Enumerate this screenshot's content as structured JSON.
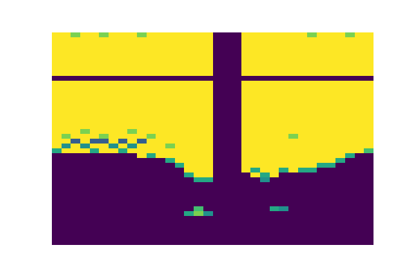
{
  "chart_data": {
    "type": "heatmap",
    "color": "viridis",
    "tick_labels": false,
    "values": [
      [
        1,
        1,
        0.8,
        1,
        1,
        0.8,
        1,
        1,
        1,
        0.8,
        1,
        1,
        1,
        1,
        1,
        1,
        1,
        0,
        0,
        0,
        1,
        1,
        1,
        1,
        1,
        1,
        1,
        0.8,
        1,
        1,
        1,
        0.8,
        1,
        1
      ],
      [
        1,
        1,
        1,
        1,
        1,
        1,
        1,
        1,
        1,
        1,
        1,
        1,
        1,
        1,
        1,
        1,
        1,
        0,
        0,
        0,
        1,
        1,
        1,
        1,
        1,
        1,
        1,
        1,
        1,
        1,
        1,
        1,
        1,
        1
      ],
      [
        1,
        1,
        1,
        1,
        1,
        1,
        1,
        1,
        1,
        1,
        1,
        1,
        1,
        1,
        1,
        1,
        1,
        0,
        0,
        0,
        1,
        1,
        1,
        1,
        1,
        1,
        1,
        1,
        1,
        1,
        1,
        1,
        1,
        1
      ],
      [
        1,
        1,
        1,
        1,
        1,
        1,
        1,
        1,
        1,
        1,
        1,
        1,
        1,
        1,
        1,
        1,
        1,
        0,
        0,
        0,
        1,
        1,
        1,
        1,
        1,
        1,
        1,
        1,
        1,
        1,
        1,
        1,
        1,
        1
      ],
      [
        1,
        1,
        1,
        1,
        1,
        1,
        1,
        1,
        1,
        1,
        1,
        1,
        1,
        1,
        1,
        1,
        1,
        0,
        0,
        0,
        1,
        1,
        1,
        1,
        1,
        1,
        1,
        1,
        1,
        1,
        1,
        1,
        1,
        1
      ],
      [
        1,
        1,
        1,
        1,
        1,
        1,
        1,
        1,
        1,
        1,
        1,
        1,
        1,
        1,
        1,
        1,
        1,
        0,
        0,
        0,
        1,
        1,
        1,
        1,
        1,
        1,
        1,
        1,
        1,
        1,
        1,
        1,
        1,
        1
      ],
      [
        1,
        1,
        1,
        1,
        1,
        1,
        1,
        1,
        1,
        1,
        1,
        1,
        1,
        1,
        1,
        1,
        1,
        0,
        0,
        0,
        1,
        1,
        1,
        1,
        1,
        1,
        1,
        1,
        1,
        1,
        1,
        1,
        1,
        1
      ],
      [
        1,
        1,
        1,
        1,
        1,
        1,
        1,
        1,
        1,
        1,
        1,
        1,
        1,
        1,
        1,
        1,
        1,
        0,
        0,
        0,
        1,
        1,
        1,
        1,
        1,
        1,
        1,
        1,
        1,
        1,
        1,
        1,
        1,
        1
      ],
      [
        1,
        1,
        1,
        1,
        1,
        1,
        1,
        1,
        1,
        1,
        1,
        1,
        1,
        1,
        1,
        1,
        1,
        0,
        0,
        0,
        1,
        1,
        1,
        1,
        1,
        1,
        1,
        1,
        1,
        1,
        1,
        1,
        1,
        1
      ],
      [
        0,
        0,
        0,
        0,
        0,
        0,
        0,
        0,
        0,
        0,
        0,
        0,
        0,
        0,
        0,
        0,
        0,
        0,
        0,
        0,
        0,
        0,
        0,
        0,
        0,
        0,
        0,
        0,
        0,
        0,
        0,
        0,
        0,
        0
      ],
      [
        1,
        1,
        1,
        1,
        1,
        1,
        1,
        1,
        1,
        1,
        1,
        1,
        1,
        1,
        1,
        1,
        1,
        0,
        0,
        0,
        1,
        1,
        1,
        1,
        1,
        1,
        1,
        1,
        1,
        1,
        1,
        1,
        1,
        1
      ],
      [
        1,
        1,
        1,
        1,
        1,
        1,
        1,
        1,
        1,
        1,
        1,
        1,
        1,
        1,
        1,
        1,
        1,
        0,
        0,
        0,
        1,
        1,
        1,
        1,
        1,
        1,
        1,
        1,
        1,
        1,
        1,
        1,
        1,
        1
      ],
      [
        1,
        1,
        1,
        1,
        1,
        1,
        1,
        1,
        1,
        1,
        1,
        1,
        1,
        1,
        1,
        1,
        1,
        0,
        0,
        0,
        1,
        1,
        1,
        1,
        1,
        1,
        1,
        1,
        1,
        1,
        1,
        1,
        1,
        1
      ],
      [
        1,
        1,
        1,
        1,
        1,
        1,
        1,
        1,
        1,
        1,
        1,
        1,
        1,
        1,
        1,
        1,
        1,
        0,
        0,
        0,
        1,
        1,
        1,
        1,
        1,
        1,
        1,
        1,
        1,
        1,
        1,
        1,
        1,
        1
      ],
      [
        1,
        1,
        1,
        1,
        1,
        1,
        1,
        1,
        1,
        1,
        1,
        1,
        1,
        1,
        1,
        1,
        1,
        0,
        0,
        0,
        1,
        1,
        1,
        1,
        1,
        1,
        1,
        1,
        1,
        1,
        1,
        1,
        1,
        1
      ],
      [
        1,
        1,
        1,
        1,
        1,
        1,
        1,
        1,
        1,
        1,
        1,
        1,
        1,
        1,
        1,
        1,
        1,
        0,
        0,
        0,
        1,
        1,
        1,
        1,
        1,
        1,
        1,
        1,
        1,
        1,
        1,
        1,
        1,
        1
      ],
      [
        1,
        1,
        1,
        1,
        1,
        1,
        1,
        1,
        1,
        1,
        1,
        1,
        1,
        1,
        1,
        1,
        1,
        0,
        0,
        0,
        1,
        1,
        1,
        1,
        1,
        1,
        1,
        1,
        1,
        1,
        1,
        1,
        1,
        1
      ],
      [
        1,
        1,
        1,
        1,
        1,
        1,
        1,
        1,
        1,
        1,
        1,
        1,
        1,
        1,
        1,
        1,
        1,
        0,
        0,
        0,
        1,
        1,
        1,
        1,
        1,
        1,
        1,
        1,
        1,
        1,
        1,
        1,
        1,
        1
      ],
      [
        1,
        1,
        1,
        1,
        1,
        1,
        1,
        1,
        1,
        1,
        1,
        1,
        1,
        1,
        1,
        1,
        1,
        0,
        0,
        0,
        1,
        1,
        1,
        1,
        1,
        1,
        1,
        1,
        1,
        1,
        1,
        1,
        1,
        1
      ],
      [
        1,
        1,
        1,
        1,
        1,
        1,
        1,
        1,
        1,
        1,
        1,
        1,
        1,
        1,
        1,
        1,
        1,
        0,
        0,
        0,
        1,
        1,
        1,
        1,
        1,
        1,
        1,
        1,
        1,
        1,
        1,
        1,
        1,
        1
      ],
      [
        1,
        1,
        1,
        0.8,
        1,
        1,
        1,
        1,
        0.8,
        1,
        1,
        1,
        1,
        1,
        1,
        1,
        1,
        0,
        0,
        0,
        1,
        1,
        1,
        1,
        1,
        1,
        1,
        1,
        1,
        1,
        1,
        1,
        1,
        1
      ],
      [
        1,
        0.8,
        1,
        1,
        1,
        0.8,
        1,
        1,
        1,
        1,
        0.8,
        1,
        1,
        1,
        1,
        1,
        1,
        0,
        0,
        0,
        1,
        1,
        1,
        1,
        1,
        0.8,
        1,
        1,
        1,
        1,
        1,
        1,
        1,
        1
      ],
      [
        1,
        1,
        0.3,
        1,
        0.3,
        0.3,
        1,
        0.3,
        1,
        0.3,
        1,
        1,
        1,
        1,
        1,
        1,
        1,
        0,
        0,
        0,
        1,
        1,
        1,
        1,
        1,
        1,
        1,
        1,
        1,
        1,
        1,
        1,
        1,
        1
      ],
      [
        1,
        0.5,
        1,
        0.5,
        1,
        1,
        0.5,
        1,
        0.5,
        1,
        1,
        1,
        0.8,
        1,
        1,
        1,
        1,
        0,
        0,
        0,
        1,
        1,
        1,
        1,
        1,
        1,
        1,
        1,
        1,
        1,
        1,
        1,
        1,
        1
      ],
      [
        0.6,
        1,
        1,
        1,
        0.6,
        1,
        1,
        0.6,
        1,
        1,
        1,
        1,
        1,
        1,
        1,
        1,
        1,
        0,
        0,
        0,
        1,
        1,
        1,
        1,
        1,
        1,
        1,
        1,
        1,
        1,
        1,
        1,
        1,
        0.7
      ],
      [
        0,
        0,
        0,
        0,
        0,
        0,
        0,
        0,
        0,
        1,
        0.6,
        1,
        1,
        1,
        1,
        1,
        1,
        0,
        0,
        0,
        1,
        1,
        1,
        1,
        1,
        1,
        1,
        1,
        1,
        1,
        1,
        0.6,
        0,
        0
      ],
      [
        0,
        0,
        0,
        0,
        0,
        0,
        0,
        0,
        0,
        0,
        0,
        0,
        0.6,
        1,
        1,
        1,
        1,
        0,
        0,
        0,
        1,
        1,
        1,
        1,
        1,
        1,
        1,
        1,
        1,
        1,
        0.6,
        0,
        0,
        0
      ],
      [
        0,
        0,
        0,
        0,
        0,
        0,
        0,
        0,
        0,
        0,
        0,
        0,
        0,
        0.6,
        1,
        1,
        1,
        0,
        0,
        0,
        1,
        1,
        1,
        1,
        1,
        1,
        1,
        1,
        0.6,
        0.6,
        0,
        0,
        0,
        0
      ],
      [
        0,
        0,
        0,
        0,
        0,
        0,
        0,
        0,
        0,
        0,
        0,
        0,
        0,
        0,
        1,
        1,
        1,
        0,
        0,
        0,
        1,
        0.6,
        1,
        1,
        0.6,
        1,
        0.6,
        0.6,
        0,
        0,
        0,
        0,
        0,
        0
      ],
      [
        0,
        0,
        0,
        0,
        0,
        0,
        0,
        0,
        0,
        0,
        0,
        0,
        0,
        0,
        0.6,
        1,
        1,
        0,
        0,
        0,
        0,
        1,
        0.6,
        1,
        0,
        0,
        0,
        0,
        0,
        0,
        0,
        0,
        0,
        0
      ],
      [
        0,
        0,
        0,
        0,
        0,
        0,
        0,
        0,
        0,
        0,
        0,
        0,
        0,
        0,
        0,
        0.6,
        0.6,
        0,
        0,
        0,
        0,
        0,
        0.5,
        0,
        0,
        0,
        0,
        0,
        0,
        0,
        0,
        0,
        0,
        0
      ],
      [
        0,
        0,
        0,
        0,
        0,
        0,
        0,
        0,
        0,
        0,
        0,
        0,
        0,
        0,
        0,
        0,
        0,
        0,
        0,
        0,
        0,
        0,
        0,
        0,
        0,
        0,
        0,
        0,
        0,
        0,
        0,
        0,
        0,
        0
      ],
      [
        0,
        0,
        0,
        0,
        0,
        0,
        0,
        0,
        0,
        0,
        0,
        0,
        0,
        0,
        0,
        0,
        0,
        0,
        0,
        0,
        0,
        0,
        0,
        0,
        0,
        0,
        0,
        0,
        0,
        0,
        0,
        0,
        0,
        0
      ],
      [
        0,
        0,
        0,
        0,
        0,
        0,
        0,
        0,
        0,
        0,
        0,
        0,
        0,
        0,
        0,
        0,
        0,
        0,
        0,
        0,
        0,
        0,
        0,
        0,
        0,
        0,
        0,
        0,
        0,
        0,
        0,
        0,
        0,
        0
      ],
      [
        0,
        0,
        0,
        0,
        0,
        0,
        0,
        0,
        0,
        0,
        0,
        0,
        0,
        0,
        0,
        0,
        0,
        0,
        0,
        0,
        0,
        0,
        0,
        0,
        0,
        0,
        0,
        0,
        0,
        0,
        0,
        0,
        0,
        0
      ],
      [
        0,
        0,
        0,
        0,
        0,
        0,
        0,
        0,
        0,
        0,
        0,
        0,
        0,
        0,
        0,
        0,
        0,
        0,
        0,
        0,
        0,
        0,
        0,
        0,
        0,
        0,
        0,
        0,
        0,
        0,
        0,
        0,
        0,
        0
      ],
      [
        0,
        0,
        0,
        0,
        0,
        0,
        0,
        0,
        0,
        0,
        0,
        0,
        0,
        0,
        0,
        0.7,
        0,
        0,
        0,
        0,
        0,
        0,
        0,
        0.6,
        0.5,
        0,
        0,
        0,
        0,
        0,
        0,
        0,
        0,
        0
      ],
      [
        0,
        0,
        0,
        0,
        0,
        0,
        0,
        0,
        0,
        0,
        0,
        0,
        0,
        0,
        0.6,
        0.8,
        0.5,
        0,
        0,
        0,
        0,
        0,
        0,
        0,
        0,
        0,
        0,
        0,
        0,
        0,
        0,
        0,
        0,
        0
      ],
      [
        0,
        0,
        0,
        0,
        0,
        0,
        0,
        0,
        0,
        0,
        0,
        0,
        0,
        0,
        0,
        0,
        0,
        0,
        0,
        0,
        0,
        0,
        0,
        0,
        0,
        0,
        0,
        0,
        0,
        0,
        0,
        0,
        0,
        0
      ],
      [
        0,
        0,
        0,
        0,
        0,
        0,
        0,
        0,
        0,
        0,
        0,
        0,
        0,
        0,
        0,
        0,
        0,
        0,
        0,
        0,
        0,
        0,
        0,
        0,
        0,
        0,
        0,
        0,
        0,
        0,
        0,
        0,
        0,
        0
      ],
      [
        0,
        0,
        0,
        0,
        0,
        0,
        0,
        0,
        0,
        0,
        0,
        0,
        0,
        0,
        0,
        0,
        0,
        0,
        0,
        0,
        0,
        0,
        0,
        0,
        0,
        0,
        0,
        0,
        0,
        0,
        0,
        0,
        0,
        0
      ],
      [
        0,
        0,
        0,
        0,
        0,
        0,
        0,
        0,
        0,
        0,
        0,
        0,
        0,
        0,
        0,
        0,
        0,
        0,
        0,
        0,
        0,
        0,
        0,
        0,
        0,
        0,
        0,
        0,
        0,
        0,
        0,
        0,
        0,
        0
      ],
      [
        0,
        0,
        0,
        0,
        0,
        0,
        0,
        0,
        0,
        0,
        0,
        0,
        0,
        0,
        0,
        0,
        0,
        0,
        0,
        0,
        0,
        0,
        0,
        0,
        0,
        0,
        0,
        0,
        0,
        0,
        0,
        0,
        0,
        0
      ],
      [
        0,
        0,
        0,
        0,
        0,
        0,
        0,
        0,
        0,
        0,
        0,
        0,
        0,
        0,
        0,
        0,
        0,
        0,
        0,
        0,
        0,
        0,
        0,
        0,
        0,
        0,
        0,
        0,
        0,
        0,
        0,
        0,
        0,
        0
      ]
    ]
  }
}
